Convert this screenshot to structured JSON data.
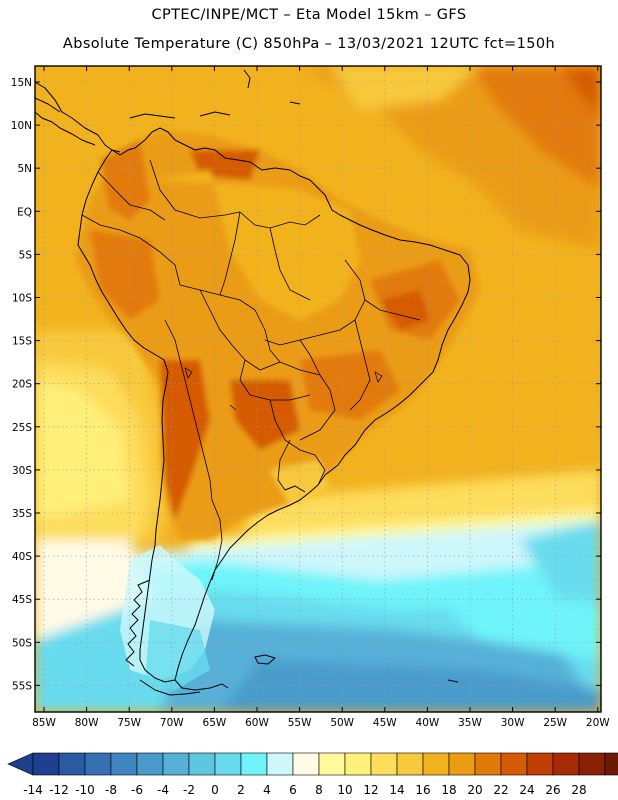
{
  "header": {
    "line1": "CPTEC/INPE/MCT –  Eta Model 15km – GFS",
    "line2": "Absolute Temperature (C) 850hPa – 13/03/2021 12UTC fct=150h"
  },
  "map": {
    "lat_labels": [
      "15N",
      "10N",
      "5N",
      "EQ",
      "5S",
      "10S",
      "15S",
      "20S",
      "25S",
      "30S",
      "35S",
      "40S",
      "45S",
      "50S",
      "55S"
    ],
    "lon_labels": [
      "85W",
      "80W",
      "75W",
      "70W",
      "65W",
      "60W",
      "55W",
      "50W",
      "45W",
      "40W",
      "35W",
      "30W",
      "25W",
      "20W"
    ]
  },
  "colorbar": {
    "labels": [
      "-14",
      "-12",
      "-10",
      "-8",
      "-6",
      "-4",
      "-2",
      "0",
      "2",
      "4",
      "6",
      "8",
      "10",
      "12",
      "14",
      "16",
      "18",
      "20",
      "22",
      "24",
      "26",
      "28"
    ],
    "colors": [
      "#1f3f8f",
      "#2a5aa3",
      "#3470b2",
      "#3f86c0",
      "#4a9bcc",
      "#56b0d8",
      "#5fc6e2",
      "#68dcee",
      "#6ef4fa",
      "#cdf7fb",
      "#fffbe6",
      "#fffa9a",
      "#fff07a",
      "#fddd5c",
      "#f8c93d",
      "#f2b21e",
      "#eb9c12",
      "#e27a0a",
      "#d55a06",
      "#c13e05",
      "#a82a05",
      "#882005",
      "#6a1a05"
    ]
  }
}
